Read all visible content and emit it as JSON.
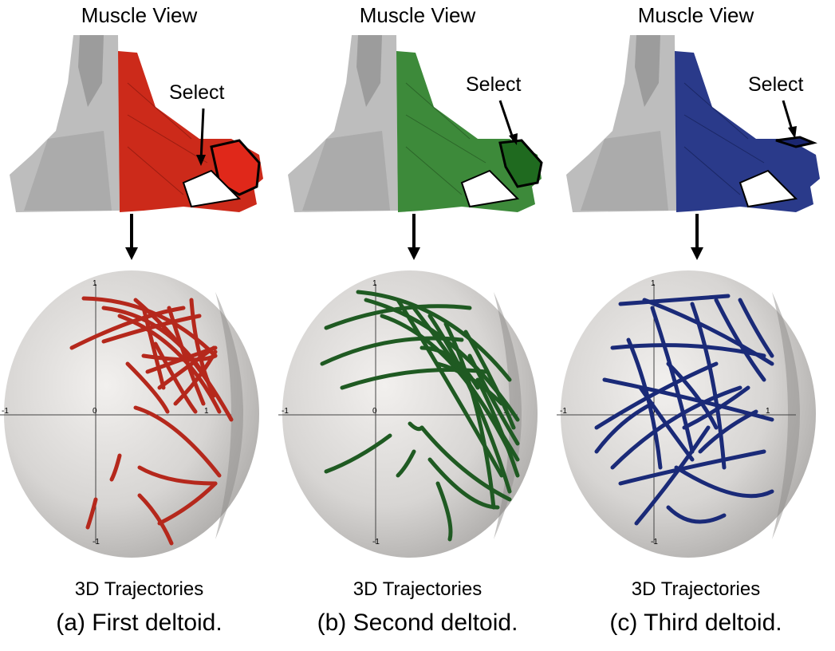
{
  "panels": [
    {
      "id": "a",
      "muscle_view_title": "Muscle View",
      "select_label": "Select",
      "trajectories_label": "3D Trajectories",
      "caption": "(a) First deltoid.",
      "muscle_color": "#cc2a1a",
      "trajectory_color": "#b5281c"
    },
    {
      "id": "b",
      "muscle_view_title": "Muscle View",
      "select_label": "Select",
      "trajectories_label": "3D Trajectories",
      "caption": "(b) Second deltoid.",
      "muscle_color": "#3d8a3a",
      "trajectory_color": "#1f5a22"
    },
    {
      "id": "c",
      "muscle_view_title": "Muscle View",
      "select_label": "Select",
      "trajectories_label": "3D Trajectories",
      "caption": "(c) Third deltoid.",
      "muscle_color": "#2a3a8a",
      "trajectory_color": "#1a2a78"
    }
  ],
  "axis_ticks": {
    "pos": "1",
    "neg": "-1",
    "zero": "0"
  }
}
